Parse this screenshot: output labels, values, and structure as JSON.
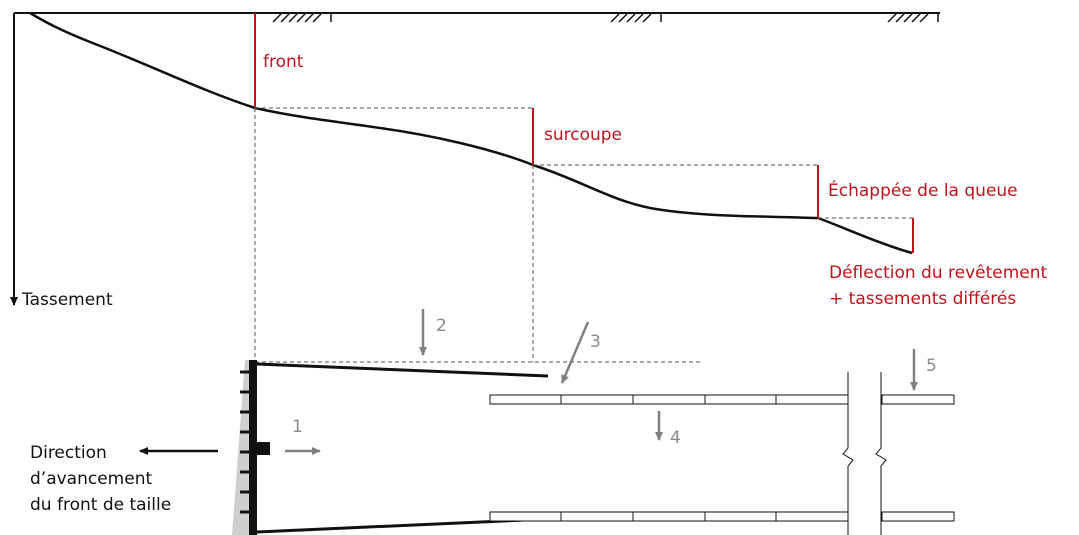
{
  "labels": {
    "front": "front",
    "surcoupe": "surcoupe",
    "echappee": "Échappée de la queue",
    "deflection_line1": "Déflection du revêtement",
    "deflection_line2": "+ tassements différés",
    "tassement": "Tassement",
    "direction_line1": "Direction",
    "direction_line2": "d’avancement",
    "direction_line3": "du front de taille"
  },
  "numbers": {
    "n1": "1",
    "n2": "2",
    "n3": "3",
    "n4": "4",
    "n5": "5"
  },
  "colors": {
    "accent_red": "#c0141c",
    "line_black": "#111111",
    "arrow_gray": "#808080",
    "face_gray": "#cfcfcf"
  }
}
